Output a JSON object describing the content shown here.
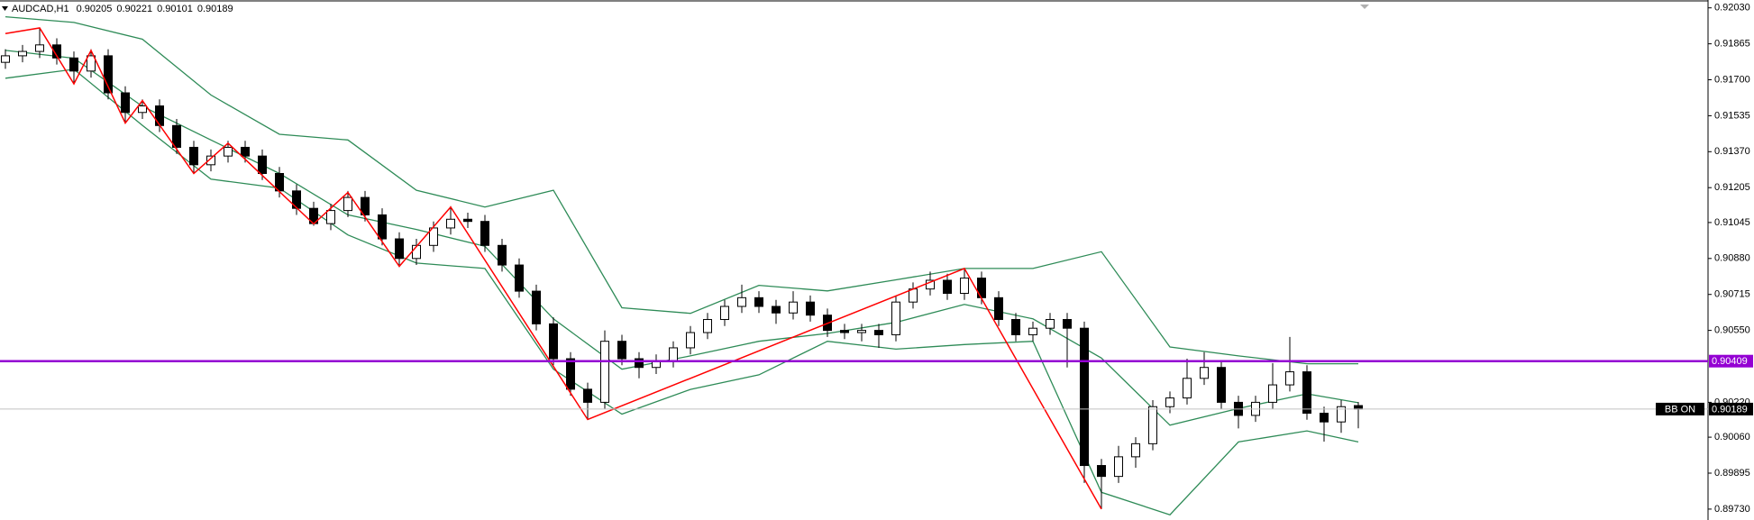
{
  "chart_data": {
    "type": "candlestick",
    "title": "AUDCAD,H1",
    "open": [
      0.9178,
      0.9181,
      0.9183,
      0.9186,
      0.918,
      0.9174,
      0.9181,
      0.9164,
      0.9155,
      0.9158,
      0.9149,
      0.9139,
      0.9131,
      0.9135,
      0.9139,
      0.9135,
      0.9127,
      0.9119,
      0.9111,
      0.9104,
      0.911,
      0.9116,
      0.9108,
      0.9097,
      0.9088,
      0.9094,
      0.9102,
      0.9106,
      0.9105,
      0.9094,
      0.9085,
      0.9073,
      0.9058,
      0.9042,
      0.9028,
      0.9022,
      0.905,
      0.9042,
      0.9038,
      0.9041,
      0.9047,
      0.9054,
      0.906,
      0.9066,
      0.907,
      0.9066,
      0.9063,
      0.9068,
      0.9062,
      0.9055,
      0.9054,
      0.9055,
      0.9053,
      0.9068,
      0.9074,
      0.9078,
      0.9072,
      0.9079,
      0.907,
      0.906,
      0.9053,
      0.9056,
      0.906,
      0.9056,
      0.8993,
      0.8988,
      0.8997,
      0.9003,
      0.902,
      0.9024,
      0.9033,
      0.9038,
      0.9022,
      0.9016,
      0.9022,
      0.903,
      0.9036,
      0.9017,
      0.9013,
      0.90205
    ],
    "high": [
      0.9184,
      0.9186,
      0.9194,
      0.9189,
      0.9183,
      0.9184,
      0.9184,
      0.9167,
      0.9161,
      0.9161,
      0.9152,
      0.9142,
      0.9138,
      0.9142,
      0.9142,
      0.9138,
      0.913,
      0.9122,
      0.9114,
      0.9113,
      0.9119,
      0.9119,
      0.9111,
      0.91,
      0.9097,
      0.9105,
      0.9112,
      0.9109,
      0.9108,
      0.9097,
      0.9088,
      0.9076,
      0.9061,
      0.9045,
      0.9031,
      0.9055,
      0.9053,
      0.9045,
      0.9044,
      0.905,
      0.9057,
      0.9063,
      0.9069,
      0.9076,
      0.9073,
      0.9069,
      0.9073,
      0.9071,
      0.9065,
      0.9058,
      0.9058,
      0.9058,
      0.9071,
      0.9077,
      0.9082,
      0.9081,
      0.9083,
      0.9082,
      0.9073,
      0.9063,
      0.9059,
      0.9063,
      0.9063,
      0.9059,
      0.8996,
      0.9002,
      0.9006,
      0.9023,
      0.9027,
      0.9042,
      0.9045,
      0.9041,
      0.9025,
      0.9025,
      0.904,
      0.9052,
      0.9039,
      0.902,
      0.9023,
      0.90221
    ],
    "low": [
      0.9175,
      0.9178,
      0.918,
      0.9177,
      0.9168,
      0.9171,
      0.9161,
      0.915,
      0.9152,
      0.9146,
      0.9136,
      0.9127,
      0.9128,
      0.9132,
      0.9132,
      0.9124,
      0.9116,
      0.9108,
      0.9103,
      0.9101,
      0.9107,
      0.9105,
      0.9094,
      0.9084,
      0.9085,
      0.9091,
      0.9099,
      0.9102,
      0.9091,
      0.9082,
      0.907,
      0.9055,
      0.9039,
      0.9025,
      0.9014,
      0.9019,
      0.9039,
      0.9033,
      0.9035,
      0.9038,
      0.9044,
      0.9051,
      0.9057,
      0.9063,
      0.9063,
      0.9058,
      0.906,
      0.9059,
      0.9052,
      0.9051,
      0.905,
      0.9047,
      0.905,
      0.9065,
      0.9071,
      0.9069,
      0.9069,
      0.9067,
      0.9057,
      0.905,
      0.905,
      0.9053,
      0.9038,
      0.8985,
      0.8973,
      0.8985,
      0.8992,
      0.9,
      0.9017,
      0.9021,
      0.903,
      0.9019,
      0.901,
      0.9013,
      0.9019,
      0.9027,
      0.9014,
      0.9004,
      0.9008,
      0.90101
    ],
    "close": [
      0.9181,
      0.9183,
      0.9186,
      0.918,
      0.9174,
      0.9181,
      0.9164,
      0.9155,
      0.9158,
      0.9149,
      0.9139,
      0.9131,
      0.9135,
      0.9139,
      0.9135,
      0.9127,
      0.9119,
      0.9111,
      0.9104,
      0.911,
      0.9116,
      0.9108,
      0.9097,
      0.9088,
      0.9094,
      0.9102,
      0.9106,
      0.9105,
      0.9094,
      0.9085,
      0.9073,
      0.9058,
      0.9042,
      0.9028,
      0.9022,
      0.905,
      0.9042,
      0.9038,
      0.9041,
      0.9047,
      0.9054,
      0.906,
      0.9066,
      0.907,
      0.9066,
      0.9063,
      0.9068,
      0.9062,
      0.9055,
      0.9054,
      0.9055,
      0.9053,
      0.9068,
      0.9074,
      0.9078,
      0.9072,
      0.9079,
      0.907,
      0.906,
      0.9053,
      0.9056,
      0.906,
      0.9056,
      0.8993,
      0.8988,
      0.8997,
      0.9003,
      0.902,
      0.9024,
      0.9033,
      0.9038,
      0.9022,
      0.9016,
      0.9022,
      0.903,
      0.9036,
      0.9017,
      0.9013,
      0.902,
      0.90189
    ],
    "up_color": "#ffffff",
    "down_color": "#000000",
    "bollinger": {
      "color": "#2e8b57",
      "x": [
        0,
        4,
        8,
        12,
        16,
        20,
        24,
        28,
        32,
        36,
        40,
        44,
        48,
        52,
        56,
        60,
        64,
        68,
        72,
        76,
        79
      ],
      "upper": [
        0.91989,
        0.91963,
        0.91886,
        0.9163,
        0.9145,
        0.91424,
        0.91193,
        0.91116,
        0.91193,
        0.90654,
        0.90628,
        0.90757,
        0.90731,
        0.90782,
        0.90834,
        0.90834,
        0.90911,
        0.90474,
        0.90433,
        0.90397,
        0.90397
      ],
      "middle": [
        0.91835,
        0.91799,
        0.91578,
        0.91424,
        0.9127,
        0.9108,
        0.91013,
        0.90936,
        0.90603,
        0.90372,
        0.90433,
        0.905,
        0.90536,
        0.90587,
        0.90669,
        0.90603,
        0.90423,
        0.90115,
        0.90192,
        0.90259,
        0.90218
      ],
      "lower": [
        0.91707,
        0.91748,
        0.91491,
        0.91244,
        0.91203,
        0.90988,
        0.90859,
        0.90834,
        0.90372,
        0.90166,
        0.90279,
        0.90346,
        0.905,
        0.90464,
        0.90485,
        0.905,
        0.89807,
        0.89704,
        0.90038,
        0.90089,
        0.90038
      ]
    },
    "zigzag": {
      "color": "#ff0000",
      "x": [
        0,
        2,
        4,
        5,
        7,
        8,
        11,
        13,
        18,
        20,
        23,
        26,
        34,
        56,
        64
      ],
      "values": [
        0.91912,
        0.91938,
        0.91681,
        0.91835,
        0.91501,
        0.91604,
        0.9127,
        0.91409,
        0.91039,
        0.91183,
        0.90844,
        0.91116,
        0.90141,
        0.90834,
        0.8973
      ]
    },
    "hline": {
      "value": 0.90409,
      "color": "#9400d3"
    },
    "price_line_color": "#c0c0c0",
    "indicator_label": "BB ON",
    "ylim": [
      0.8968,
      0.92066
    ],
    "yticks": [
      {
        "value": 0.9203,
        "label": "0.92030"
      },
      {
        "value": 0.91865,
        "label": "0.91865"
      },
      {
        "value": 0.917,
        "label": "0.91700"
      },
      {
        "value": 0.91535,
        "label": "0.91535"
      },
      {
        "value": 0.9137,
        "label": "0.91370"
      },
      {
        "value": 0.91205,
        "label": "0.91205"
      },
      {
        "value": 0.91045,
        "label": "0.91045"
      },
      {
        "value": 0.9088,
        "label": "0.90880"
      },
      {
        "value": 0.90715,
        "label": "0.90715"
      },
      {
        "value": 0.9055,
        "label": "0.90550"
      },
      {
        "value": 0.9022,
        "label": "0.90220"
      },
      {
        "value": 0.9006,
        "label": "0.90060"
      },
      {
        "value": 0.89895,
        "label": "0.89895"
      },
      {
        "value": 0.8973,
        "label": "0.89730"
      }
    ]
  }
}
